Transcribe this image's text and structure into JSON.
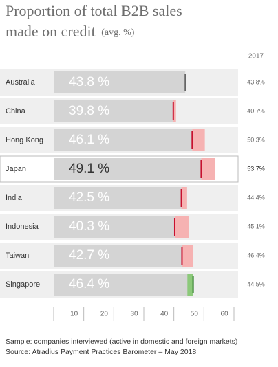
{
  "chart_data": {
    "type": "bar",
    "orientation": "horizontal",
    "title": "Proportion of total B2B sales",
    "title_line2": "made on credit",
    "title_note": "(avg. %)",
    "categories": [
      "Australia",
      "China",
      "Hong Kong",
      "Japan",
      "India",
      "Indonesia",
      "Taiwan",
      "Singapore"
    ],
    "values": [
      43.8,
      39.8,
      46.1,
      49.1,
      42.5,
      40.3,
      42.7,
      46.4
    ],
    "value_labels": [
      "43.8 %",
      "39.8 %",
      "46.1 %",
      "49.1 %",
      "42.5 %",
      "40.3 %",
      "42.7 %",
      "46.4 %"
    ],
    "color": "#d4d4d4",
    "comparison": {
      "name": "2017",
      "values": [
        43.8,
        40.7,
        50.3,
        53.7,
        44.4,
        45.1,
        46.4,
        44.5
      ],
      "value_labels": [
        "43.8%",
        "40.7%",
        "50.3%",
        "53.7%",
        "44.4%",
        "45.1%",
        "46.4%",
        "44.5%"
      ]
    },
    "decline_color": "#f6b2b2",
    "decline_marker_color": "#c8102e",
    "increase_color": "#8cc97a",
    "increase_marker_color": "#2f7d2a",
    "equal_marker_color": "#666666",
    "highlight_index": 3,
    "xlim": [
      0,
      60
    ],
    "xticks": [
      10,
      20,
      30,
      40,
      50,
      60
    ],
    "notes": [
      "Sample: companies interviewed (active in domestic and foreign markets)",
      "Source: Atradius Payment Practices Barometer – May 2018"
    ]
  }
}
